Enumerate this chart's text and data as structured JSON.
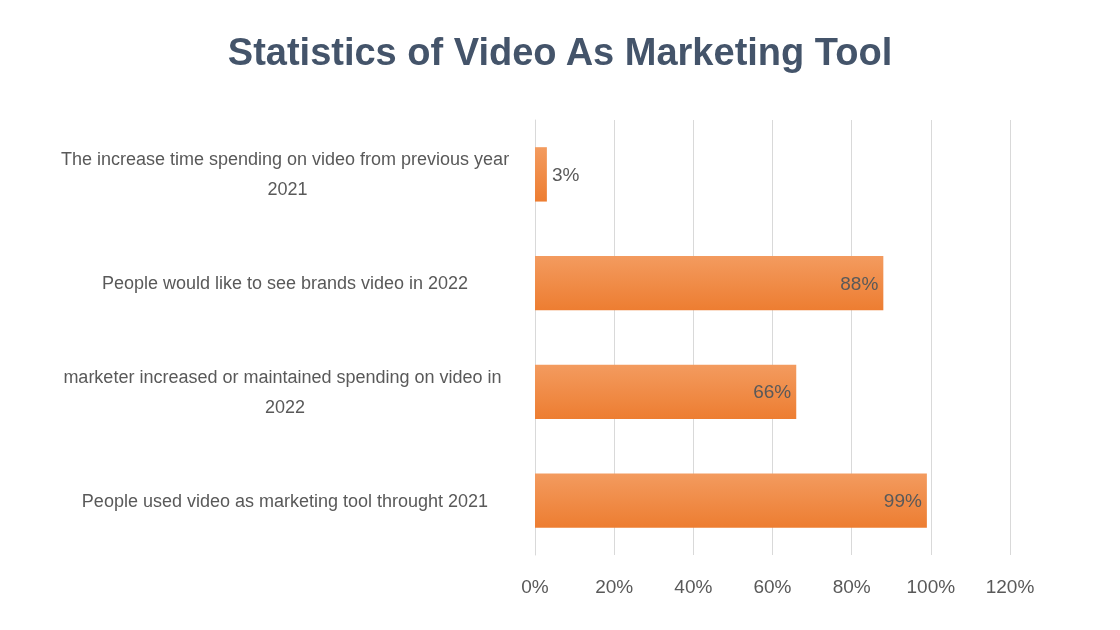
{
  "chart_data": {
    "type": "bar",
    "orientation": "horizontal",
    "title": "Statistics of Video As Marketing Tool",
    "categories": [
      "The increase time spending on video from previous year 2021",
      "People would like to see brands video in 2022",
      "marketer increased or maintained spending on video in 2022",
      "People used video as marketing tool throught 2021"
    ],
    "values": [
      3,
      88,
      66,
      99
    ],
    "value_labels": [
      "3%",
      "88%",
      "66%",
      "99%"
    ],
    "color": "#ed7d31",
    "xlim": [
      0,
      120
    ],
    "xticks": [
      {
        "value": 0,
        "label": "0%"
      },
      {
        "value": 20,
        "label": "20%"
      },
      {
        "value": 40,
        "label": "40%"
      },
      {
        "value": 60,
        "label": "60%"
      },
      {
        "value": 80,
        "label": "80%"
      },
      {
        "value": 100,
        "label": "100%"
      },
      {
        "value": 120,
        "label": "120%"
      }
    ],
    "grid": "x"
  }
}
